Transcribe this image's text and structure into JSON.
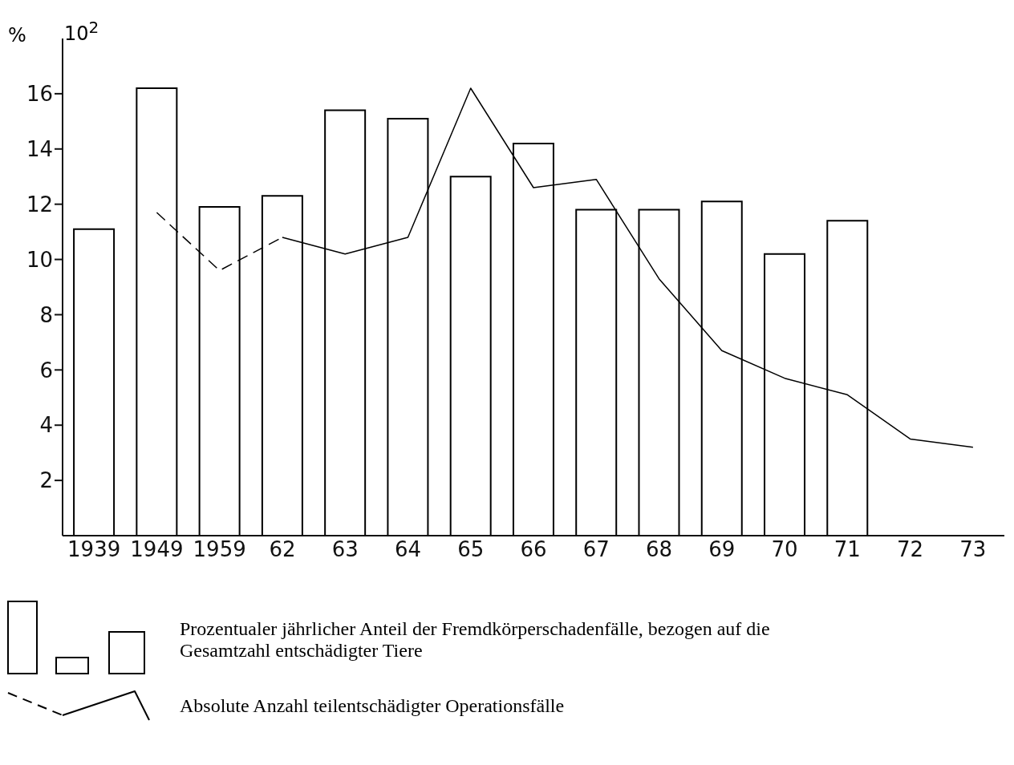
{
  "chart_data": {
    "type": "bar",
    "categories": [
      "1939",
      "1949",
      "1959",
      "62",
      "63",
      "64",
      "65",
      "66",
      "67",
      "68",
      "69",
      "70",
      "71",
      "72",
      "73"
    ],
    "ylabel": "%",
    "annotations": [
      "10$^{2}$"
    ],
    "ylim": [
      0,
      18
    ],
    "yticks": [
      2,
      4,
      6,
      8,
      10,
      12,
      14,
      16
    ],
    "series": [
      {
        "name": "Prozentualer jährlicher Anteil der Fremdkörperschadenfälle, bezogen auf die Gesamtzahl entschädigter Tiere",
        "color": "#000000",
        "values": [
          11.1,
          16.2,
          11.9,
          12.3,
          15.4,
          15.1,
          13.0,
          14.2,
          11.8,
          11.8,
          12.1,
          10.2,
          11.4,
          null,
          null
        ]
      },
      {
        "type": "line",
        "line_style": "dashed",
        "color": "#000000",
        "values": [
          null,
          11.7,
          9.6,
          10.8,
          null,
          null,
          null,
          null,
          null,
          null,
          null,
          null,
          null,
          null,
          null
        ]
      },
      {
        "name": "Absolute Anzahl teilentschädigter Operationsfälle",
        "type": "line",
        "line_style": "solid",
        "color": "#000000",
        "values": [
          null,
          null,
          null,
          10.8,
          10.2,
          10.8,
          16.2,
          12.6,
          12.9,
          9.3,
          6.7,
          5.7,
          5.1,
          3.5,
          3.2
        ]
      }
    ],
    "legend": "bottom",
    "grid": false,
    "marker": "none"
  }
}
